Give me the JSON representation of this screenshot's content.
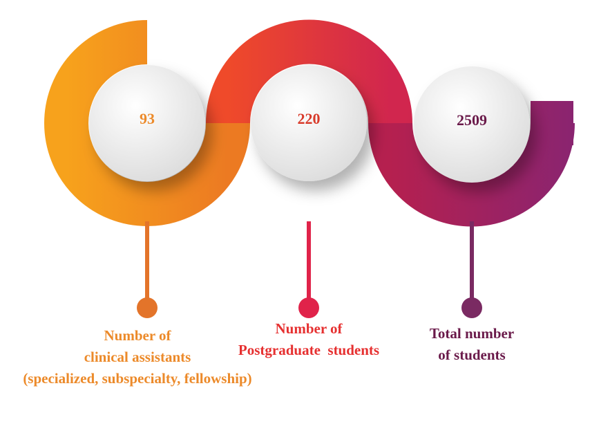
{
  "items": [
    {
      "value": 93,
      "label": [
        "Number of",
        "clinical assistants",
        "(specialized, subspecialty, fellowship)"
      ]
    },
    {
      "value": 220,
      "label": [
        "Number of",
        "Postgraduate  students"
      ]
    },
    {
      "value": 2509,
      "label": [
        "Total number",
        "of students"
      ]
    }
  ]
}
